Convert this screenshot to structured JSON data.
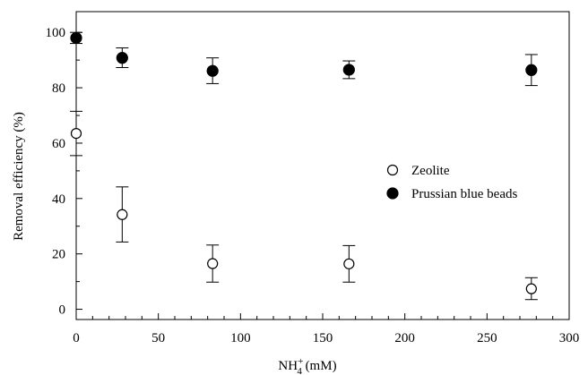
{
  "chart_data": {
    "type": "scatter",
    "title": "",
    "xlabel": {
      "base": "NH",
      "sub": "4",
      "sup": "+",
      "unit": " (mM)"
    },
    "ylabel": "Removal efficiency (%)",
    "xlim": [
      0,
      300
    ],
    "ylim": [
      0,
      100
    ],
    "x_ticks": [
      "0",
      "50",
      "100",
      "150",
      "200",
      "250",
      "300"
    ],
    "y_ticks": [
      "0",
      "20",
      "40",
      "60",
      "80",
      "100"
    ],
    "grid": false,
    "legend_position": "center-right",
    "series": [
      {
        "name": "Zeolite",
        "marker": "open-circle",
        "color": "#000000",
        "points": [
          {
            "x": 0,
            "y": 63.5,
            "err_low": 55.5,
            "err_high": 71.5
          },
          {
            "x": 28,
            "y": 34.2,
            "err_low": 24.3,
            "err_high": 44.2
          },
          {
            "x": 83,
            "y": 16.5,
            "err_low": 9.8,
            "err_high": 23.2
          },
          {
            "x": 166,
            "y": 16.4,
            "err_low": 9.8,
            "err_high": 23.0
          },
          {
            "x": 277,
            "y": 7.4,
            "err_low": 3.5,
            "err_high": 11.4
          }
        ]
      },
      {
        "name": "Prussian blue beads",
        "marker": "filled-circle",
        "color": "#000000",
        "points": [
          {
            "x": 0,
            "y": 98.0,
            "err_low": 96.0,
            "err_high": 100.0
          },
          {
            "x": 28,
            "y": 90.8,
            "err_low": 87.3,
            "err_high": 94.4
          },
          {
            "x": 83,
            "y": 86.1,
            "err_low": 81.5,
            "err_high": 90.8
          },
          {
            "x": 166,
            "y": 86.5,
            "err_low": 83.3,
            "err_high": 89.7
          },
          {
            "x": 277,
            "y": 86.4,
            "err_low": 80.8,
            "err_high": 92.0
          }
        ]
      }
    ]
  }
}
